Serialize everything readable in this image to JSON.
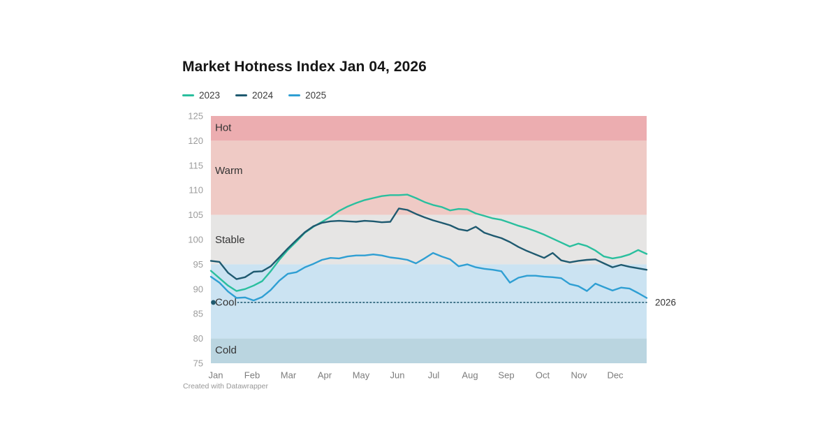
{
  "header": {
    "title": "Market Hotness Index Jan 04, 2026"
  },
  "attribution": "Created with Datawrapper",
  "chart_data": {
    "type": "line",
    "title": "Market Hotness Index Jan 04, 2026",
    "x_unit": "weeks",
    "months": [
      "Jan",
      "Feb",
      "Mar",
      "Apr",
      "May",
      "Jun",
      "Jul",
      "Aug",
      "Sep",
      "Oct",
      "Nov",
      "Dec"
    ],
    "ylim": [
      75,
      125
    ],
    "y_ticks": [
      125,
      120,
      115,
      110,
      105,
      100,
      95,
      90,
      85,
      80,
      75
    ],
    "grid": false,
    "legend_position": "top-left",
    "bands": [
      {
        "label": "Hot",
        "from": 120,
        "to": 125,
        "color": "#ecadb0",
        "label_value": 122.6
      },
      {
        "label": "Warm",
        "from": 105,
        "to": 120,
        "color": "#efcac5",
        "label_value": 113.9
      },
      {
        "label": "Stable",
        "from": 95,
        "to": 105,
        "color": "#e6e5e4",
        "label_value": 99.9
      },
      {
        "label": "Cool",
        "from": 80,
        "to": 95,
        "color": "#cbe3f2",
        "label_value": 87.3
      },
      {
        "label": "Cold",
        "from": 75,
        "to": 80,
        "color": "#bad5e0",
        "label_value": 77.6
      }
    ],
    "series": [
      {
        "name": "2023",
        "color": "#2abf9e",
        "values": [
          93.7,
          92.2,
          90.7,
          89.6,
          90.0,
          90.7,
          91.6,
          93.6,
          95.9,
          97.9,
          99.6,
          101.4,
          102.6,
          103.6,
          104.6,
          105.8,
          106.7,
          107.4,
          108.0,
          108.4,
          108.8,
          109.0,
          109.0,
          109.1,
          108.4,
          107.6,
          107.0,
          106.6,
          105.9,
          106.2,
          106.1,
          105.3,
          104.8,
          104.3,
          104.0,
          103.4,
          102.8,
          102.3,
          101.7,
          101.0,
          100.2,
          99.4,
          98.6,
          99.2,
          98.7,
          97.8,
          96.6,
          96.2,
          96.5,
          97.0,
          97.9,
          97.1
        ]
      },
      {
        "name": "2024",
        "color": "#1f5a70",
        "values": [
          95.7,
          95.5,
          93.3,
          92.0,
          92.4,
          93.5,
          93.6,
          94.6,
          96.4,
          98.2,
          99.9,
          101.5,
          102.7,
          103.4,
          103.7,
          103.8,
          103.7,
          103.6,
          103.8,
          103.7,
          103.5,
          103.6,
          106.3,
          106.0,
          105.2,
          104.5,
          103.9,
          103.4,
          102.9,
          102.1,
          101.8,
          102.6,
          101.4,
          100.8,
          100.3,
          99.5,
          98.5,
          97.7,
          97.0,
          96.3,
          97.3,
          95.8,
          95.4,
          95.7,
          95.9,
          96.0,
          95.2,
          94.4,
          94.9,
          94.5,
          94.2,
          93.9
        ]
      },
      {
        "name": "2025",
        "color": "#2f9fd3",
        "values": [
          92.5,
          91.3,
          89.5,
          88.2,
          88.3,
          87.7,
          88.4,
          89.8,
          91.7,
          93.1,
          93.4,
          94.4,
          95.1,
          95.9,
          96.3,
          96.2,
          96.6,
          96.8,
          96.8,
          97.0,
          96.8,
          96.4,
          96.2,
          95.9,
          95.2,
          96.2,
          97.3,
          96.6,
          96.0,
          94.6,
          95.0,
          94.4,
          94.1,
          93.9,
          93.6,
          91.3,
          92.3,
          92.7,
          92.7,
          92.5,
          92.4,
          92.2,
          91.0,
          90.6,
          89.6,
          91.1,
          90.4,
          89.7,
          90.3,
          90.1,
          89.2,
          88.2
        ]
      }
    ],
    "reference": {
      "label": "2026",
      "value": 87.3,
      "color": "#1f5a70",
      "style": "dotted",
      "marker_at_start": true
    }
  }
}
